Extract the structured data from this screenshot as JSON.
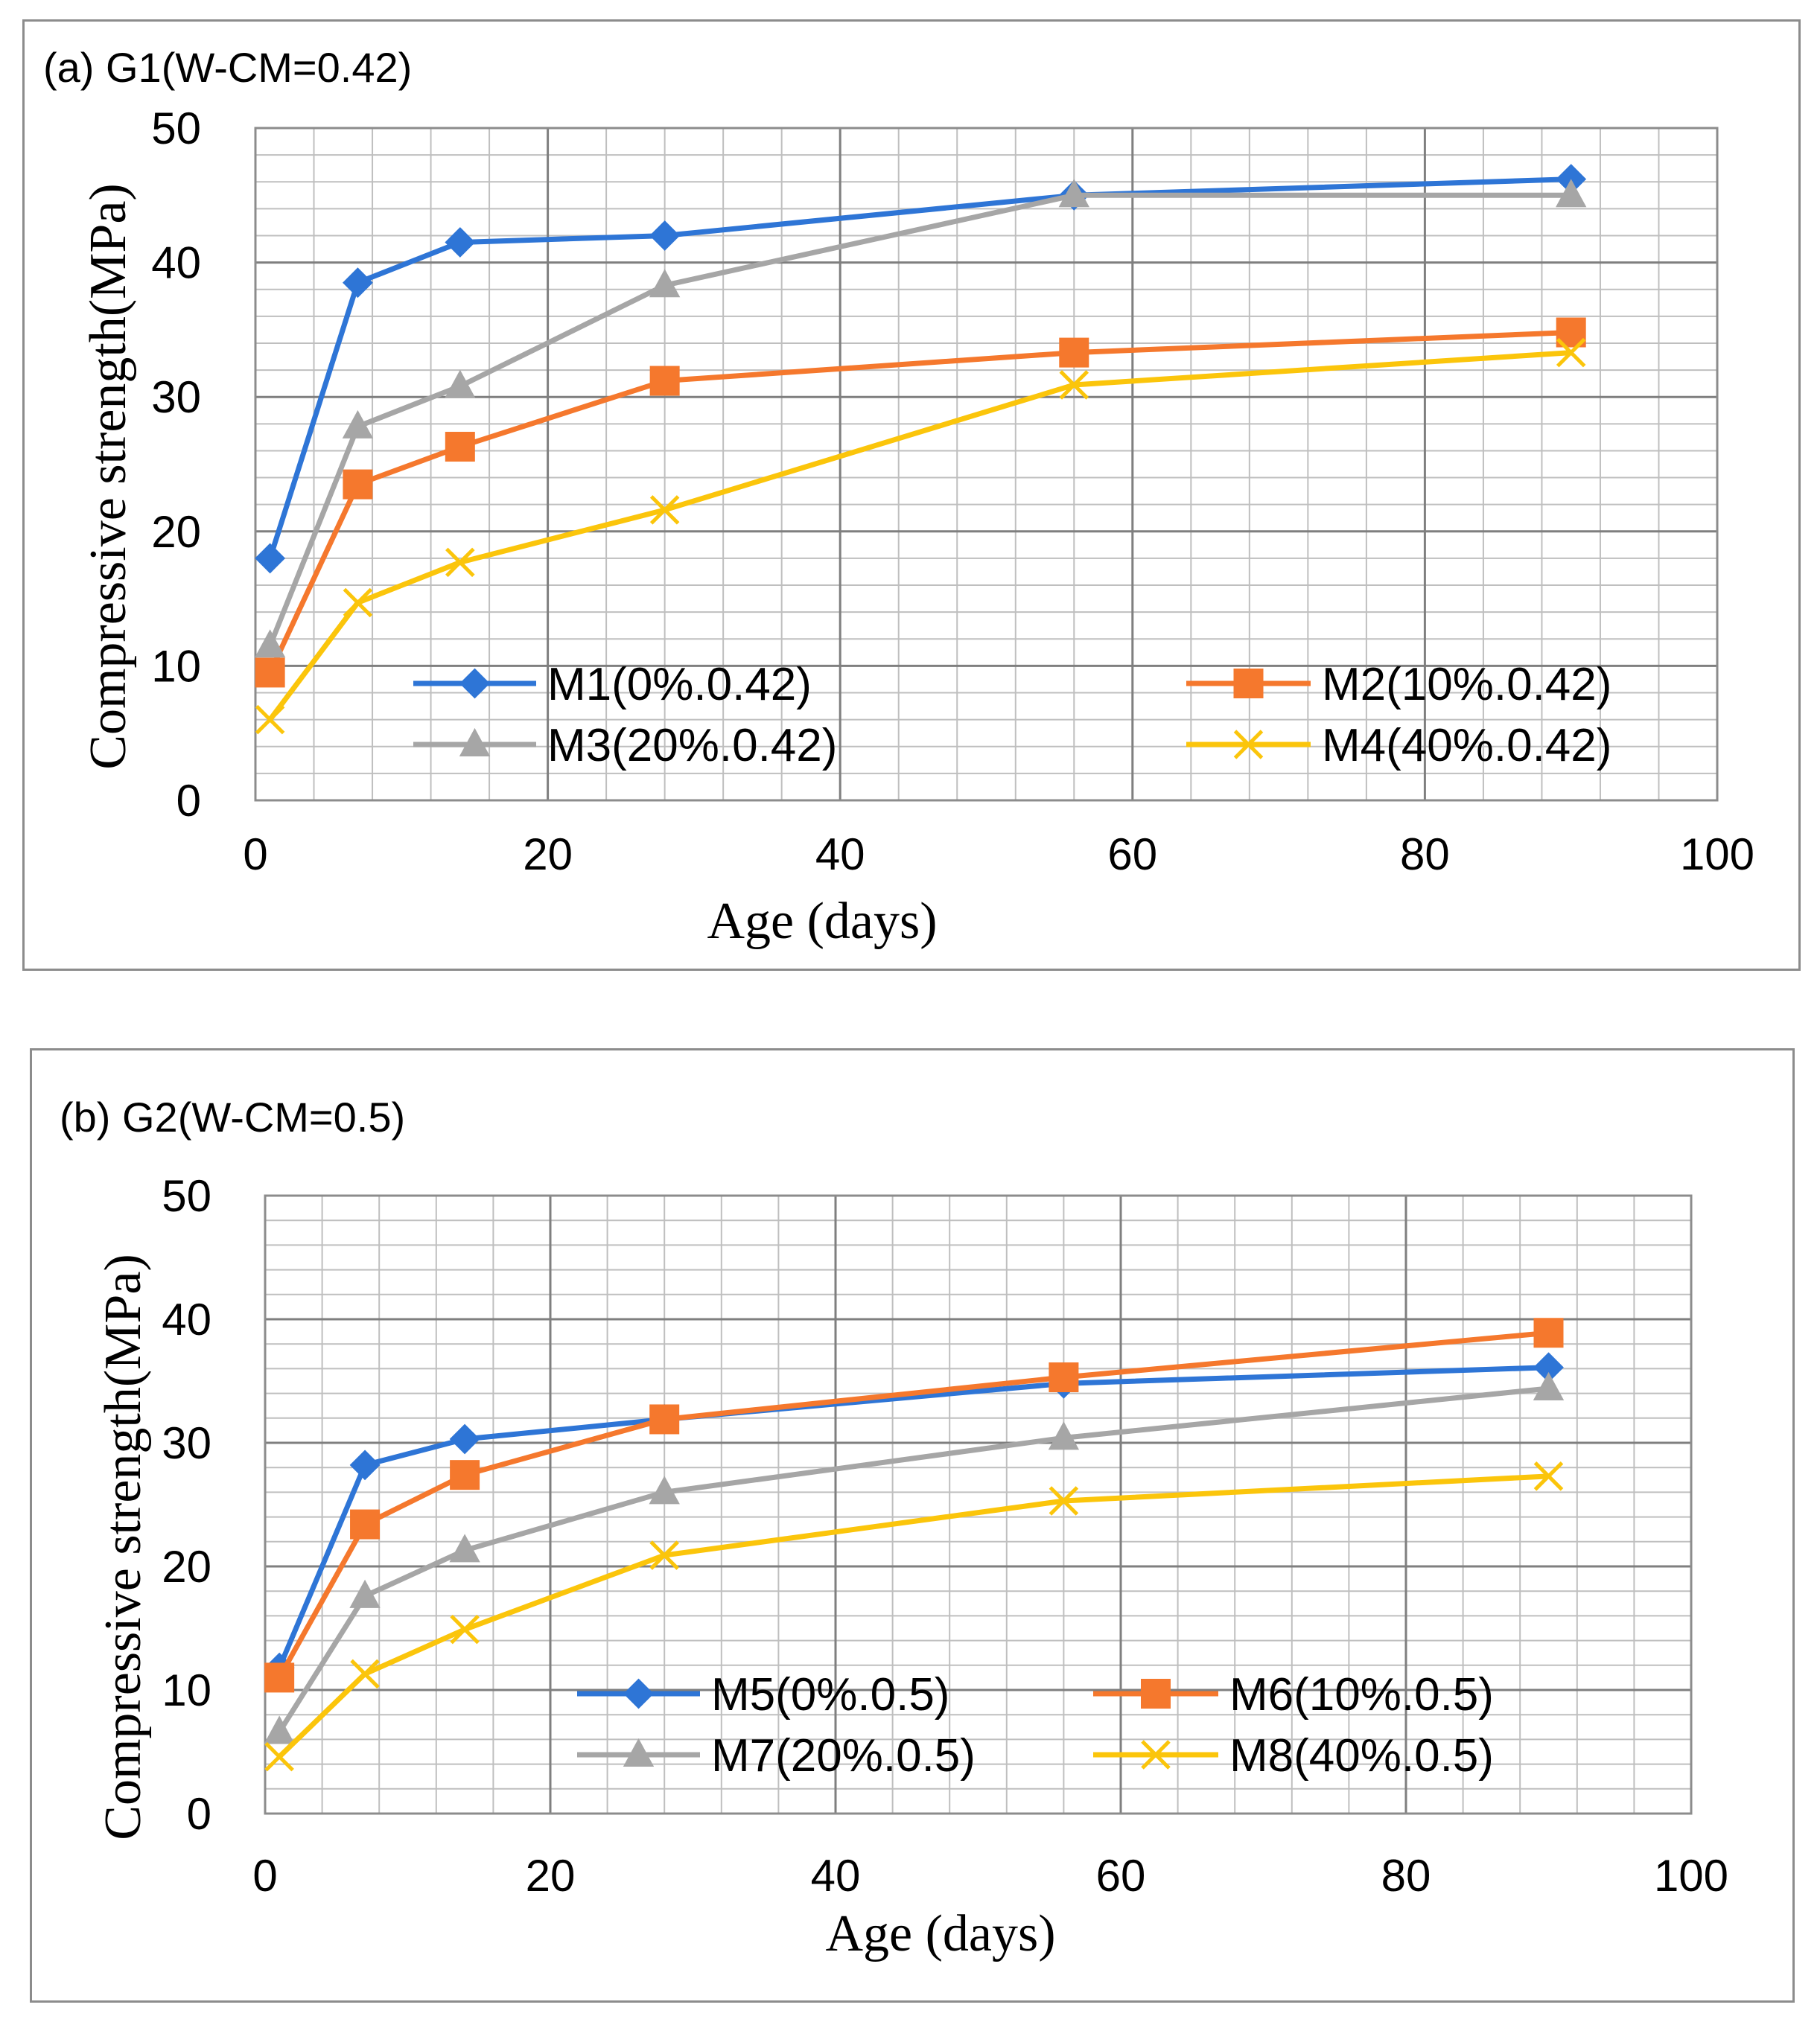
{
  "chart_data": [
    {
      "type": "line",
      "title": "(a) G1(W-CM=0.42)",
      "xlabel": "Age (days)",
      "ylabel": "Compressive strength(MPa)",
      "xlim": [
        0,
        100
      ],
      "ylim": [
        0,
        50
      ],
      "x_ticks": [
        "0",
        "20",
        "40",
        "60",
        "80",
        "100"
      ],
      "y_ticks": [
        "0",
        "10",
        "20",
        "30",
        "40",
        "50"
      ],
      "x": [
        1,
        7,
        14,
        28,
        56,
        90
      ],
      "legend_position": "lower-center",
      "series": [
        {
          "name": "M1(0%.0.42)",
          "values": [
            18,
            38.5,
            41.5,
            42,
            45,
            46.2
          ],
          "color": "#2e75d6",
          "marker": "diamond"
        },
        {
          "name": "M2(10%.0.42)",
          "values": [
            9.5,
            23.5,
            26.3,
            31.2,
            33.3,
            34.8
          ],
          "color": "#f5782d",
          "marker": "square"
        },
        {
          "name": "M3(20%.0.42)",
          "values": [
            11.5,
            27.8,
            30.8,
            38.3,
            45,
            45
          ],
          "color": "#a6a6a6",
          "marker": "triangle"
        },
        {
          "name": "M4(40%.0.42)",
          "values": [
            6,
            14.7,
            17.7,
            21.6,
            30.9,
            33.3
          ],
          "color": "#fbc50b",
          "marker": "x"
        }
      ]
    },
    {
      "type": "line",
      "title": "(b) G2(W-CM=0.5)",
      "xlabel": "Age (days)",
      "ylabel": "Compressive strength(MPa)",
      "xlim": [
        0,
        100
      ],
      "ylim": [
        0,
        50
      ],
      "x_ticks": [
        "0",
        "20",
        "40",
        "60",
        "80",
        "100"
      ],
      "y_ticks": [
        "0",
        "10",
        "20",
        "30",
        "40",
        "50"
      ],
      "x": [
        1,
        7,
        14,
        28,
        56,
        90
      ],
      "legend_position": "lower-center",
      "series": [
        {
          "name": "M5(0%.0.5)",
          "values": [
            11.8,
            28.2,
            30.3,
            31.9,
            34.8,
            36.1
          ],
          "color": "#2e75d6",
          "marker": "diamond"
        },
        {
          "name": "M6(10%.0.5)",
          "values": [
            11,
            23.4,
            27.4,
            31.9,
            35.3,
            38.9
          ],
          "color": "#f5782d",
          "marker": "square"
        },
        {
          "name": "M7(20%.0.5)",
          "values": [
            6.6,
            17.6,
            21.3,
            26,
            30.4,
            34.4
          ],
          "color": "#a6a6a6",
          "marker": "triangle"
        },
        {
          "name": "M8(40%.0.5)",
          "values": [
            4.6,
            11.3,
            14.9,
            20.9,
            25.3,
            27.3
          ],
          "color": "#fbc50b",
          "marker": "x"
        }
      ]
    }
  ]
}
